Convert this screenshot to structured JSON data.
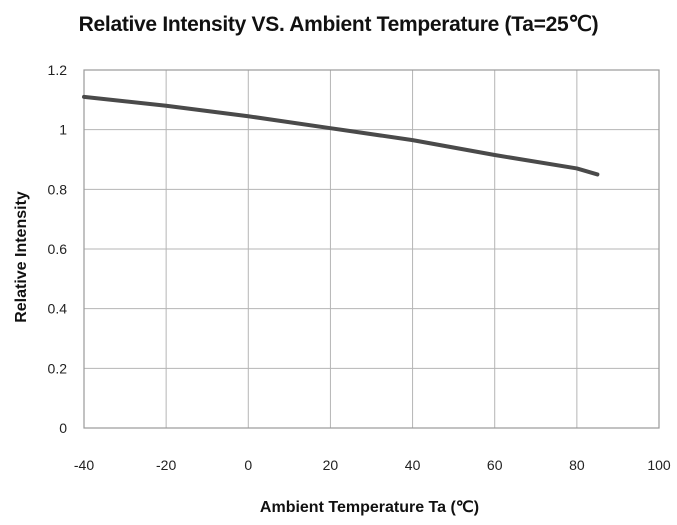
{
  "chart_data": {
    "type": "line",
    "title": "Relative Intensity VS. Ambient Temperature  (Ta=25℃)",
    "xlabel": "Ambient  Temperature  Ta (℃)",
    "ylabel": "Relative  Intensity",
    "xlim": [
      -40,
      100
    ],
    "ylim": [
      0,
      1.2
    ],
    "x_ticks": [
      -40,
      -20,
      0,
      20,
      40,
      60,
      80,
      100
    ],
    "y_ticks": [
      0,
      0.2,
      0.4,
      0.6,
      0.8,
      1,
      1.2
    ],
    "grid": true,
    "series": [
      {
        "x": [
          -40,
          -20,
          0,
          20,
          40,
          60,
          80,
          85
        ],
        "values": [
          1.11,
          1.08,
          1.045,
          1.005,
          0.965,
          0.915,
          0.87,
          0.85
        ]
      }
    ],
    "colors": {
      "line": "#4a4a4a",
      "grid": "#b5b5b5",
      "frame": "#9a9a9a"
    }
  }
}
